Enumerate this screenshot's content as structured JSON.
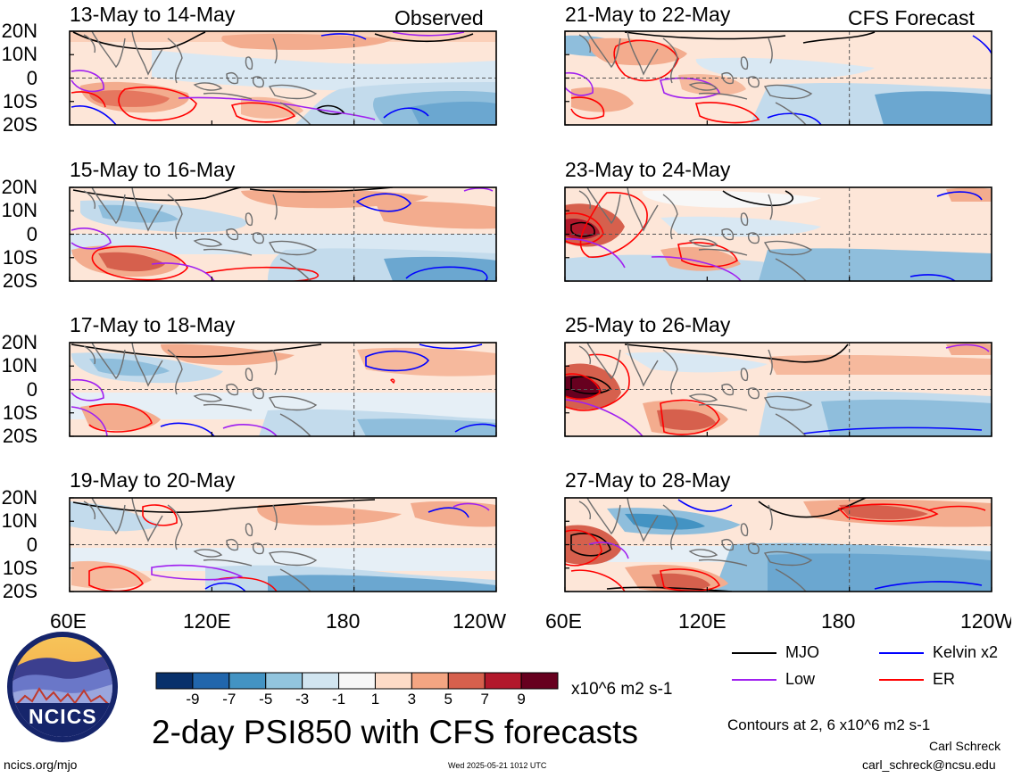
{
  "panels": [
    {
      "title": "13-May to 14-May",
      "tag": "Observed"
    },
    {
      "title": "15-May to 16-May",
      "tag": ""
    },
    {
      "title": "17-May to 18-May",
      "tag": ""
    },
    {
      "title": "19-May to 20-May",
      "tag": ""
    },
    {
      "title": "21-May to 22-May",
      "tag": "CFS Forecast"
    },
    {
      "title": "23-May to 24-May",
      "tag": ""
    },
    {
      "title": "25-May to 26-May",
      "tag": ""
    },
    {
      "title": "27-May to 28-May",
      "tag": ""
    }
  ],
  "lat_labels": [
    "20N",
    "10N",
    "0",
    "10S",
    "20S"
  ],
  "lon_labels": [
    "60E",
    "120E",
    "180",
    "120W"
  ],
  "colorbar": {
    "colors": [
      "#08306b",
      "#2166ac",
      "#4393c3",
      "#92c5de",
      "#d1e5f0",
      "#f7f7f7",
      "#fddbc7",
      "#f4a582",
      "#d6604d",
      "#b2182b",
      "#67001f"
    ],
    "ticks": [
      "-9",
      "-7",
      "-5",
      "-3",
      "-1",
      "1",
      "3",
      "5",
      "7",
      "9"
    ],
    "units": "x10^6 m2 s-1"
  },
  "legend": [
    {
      "label": "MJO",
      "color": "#000000"
    },
    {
      "label": "Kelvin x2",
      "color": "#0000ff"
    },
    {
      "label": "Low",
      "color": "#a020f0"
    },
    {
      "label": "ER",
      "color": "#ff0000"
    }
  ],
  "logo_text": "NCICS",
  "main_title": "2-day PSI850 with CFS forecasts",
  "contours_note": "Contours at 2, 6 x10^6 m2 s-1",
  "author": "Carl Schreck",
  "email": "carl_schreck@ncsu.edu",
  "site": "ncics.org/mjo",
  "timestamp": "Wed 2025-05-21 1012 UTC"
}
